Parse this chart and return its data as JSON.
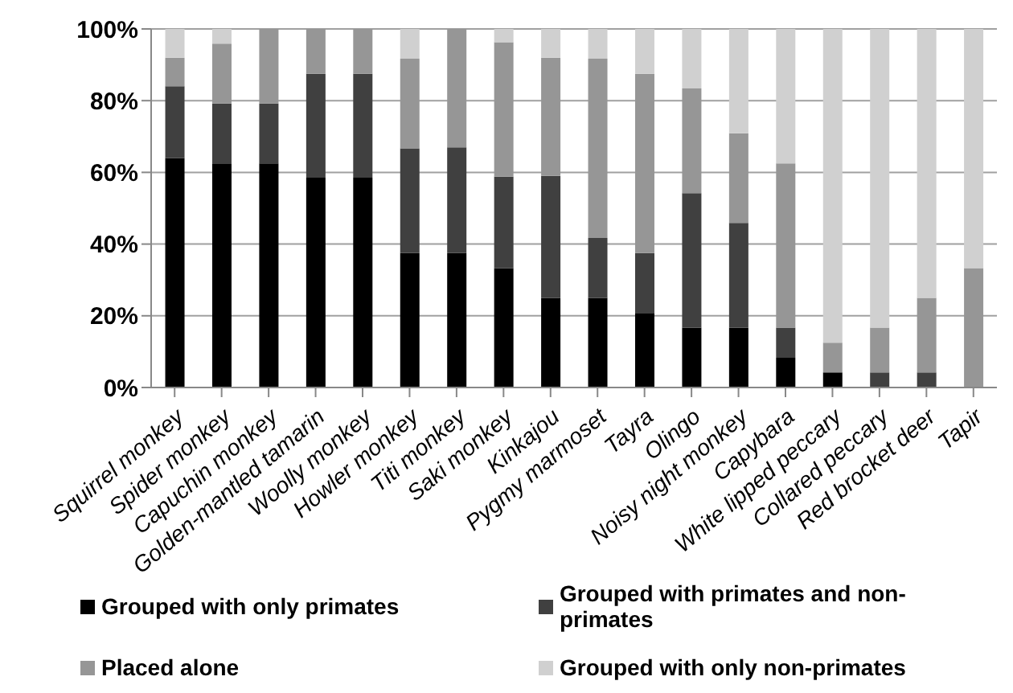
{
  "chart_data": {
    "type": "bar",
    "stacked": true,
    "categories": [
      "Squirrel monkey",
      "Spider monkey",
      "Capuchin monkey",
      "Golden-mantled tamarin",
      "Woolly monkey",
      "Howler monkey",
      "Titi monkey",
      "Saki monkey",
      "Kinkajou",
      "Pygmy marmoset",
      "Tayra",
      "Olingo",
      "Noisy night monkey",
      "Capybara",
      "White lipped peccary",
      "Collared peccary",
      "Red brocket deer",
      "Tapir"
    ],
    "series": [
      {
        "name": "Grouped with only primates",
        "color": "#000000",
        "values": [
          64,
          62.5,
          62.5,
          58.5,
          58.5,
          37.5,
          37.5,
          33.3,
          25,
          25,
          20.8,
          16.7,
          16.7,
          8.3,
          4.2,
          0,
          0,
          0
        ]
      },
      {
        "name": "Grouped with primates and non-primates",
        "color": "#404040",
        "values": [
          20,
          16.7,
          16.7,
          29,
          29,
          29.2,
          29.5,
          25.5,
          34,
          16.7,
          16.7,
          37.5,
          29.2,
          8.4,
          0,
          4.2,
          4.2,
          0
        ]
      },
      {
        "name": "Placed alone",
        "color": "#969696",
        "values": [
          8,
          16.7,
          20.8,
          12.5,
          12.5,
          25,
          33,
          37.5,
          33,
          50,
          50,
          29.2,
          25,
          45.8,
          8.3,
          12.5,
          20.8,
          33.3
        ]
      },
      {
        "name": "Grouped with only non-primates",
        "color": "#d0d0d0",
        "values": [
          8,
          4.1,
          0,
          0,
          0,
          8.3,
          0,
          3.7,
          8,
          8.3,
          12.5,
          16.6,
          29.1,
          37.5,
          87.5,
          83.3,
          75,
          66.7
        ]
      }
    ],
    "ylim": [
      0,
      100
    ],
    "yticks": [
      {
        "value": 0,
        "label": "0%"
      },
      {
        "value": 20,
        "label": "20%"
      },
      {
        "value": 40,
        "label": "40%"
      },
      {
        "value": 60,
        "label": "60%"
      },
      {
        "value": 80,
        "label": "80%"
      },
      {
        "value": 100,
        "label": "100%"
      }
    ],
    "grid": "y",
    "legend": "bottom"
  }
}
